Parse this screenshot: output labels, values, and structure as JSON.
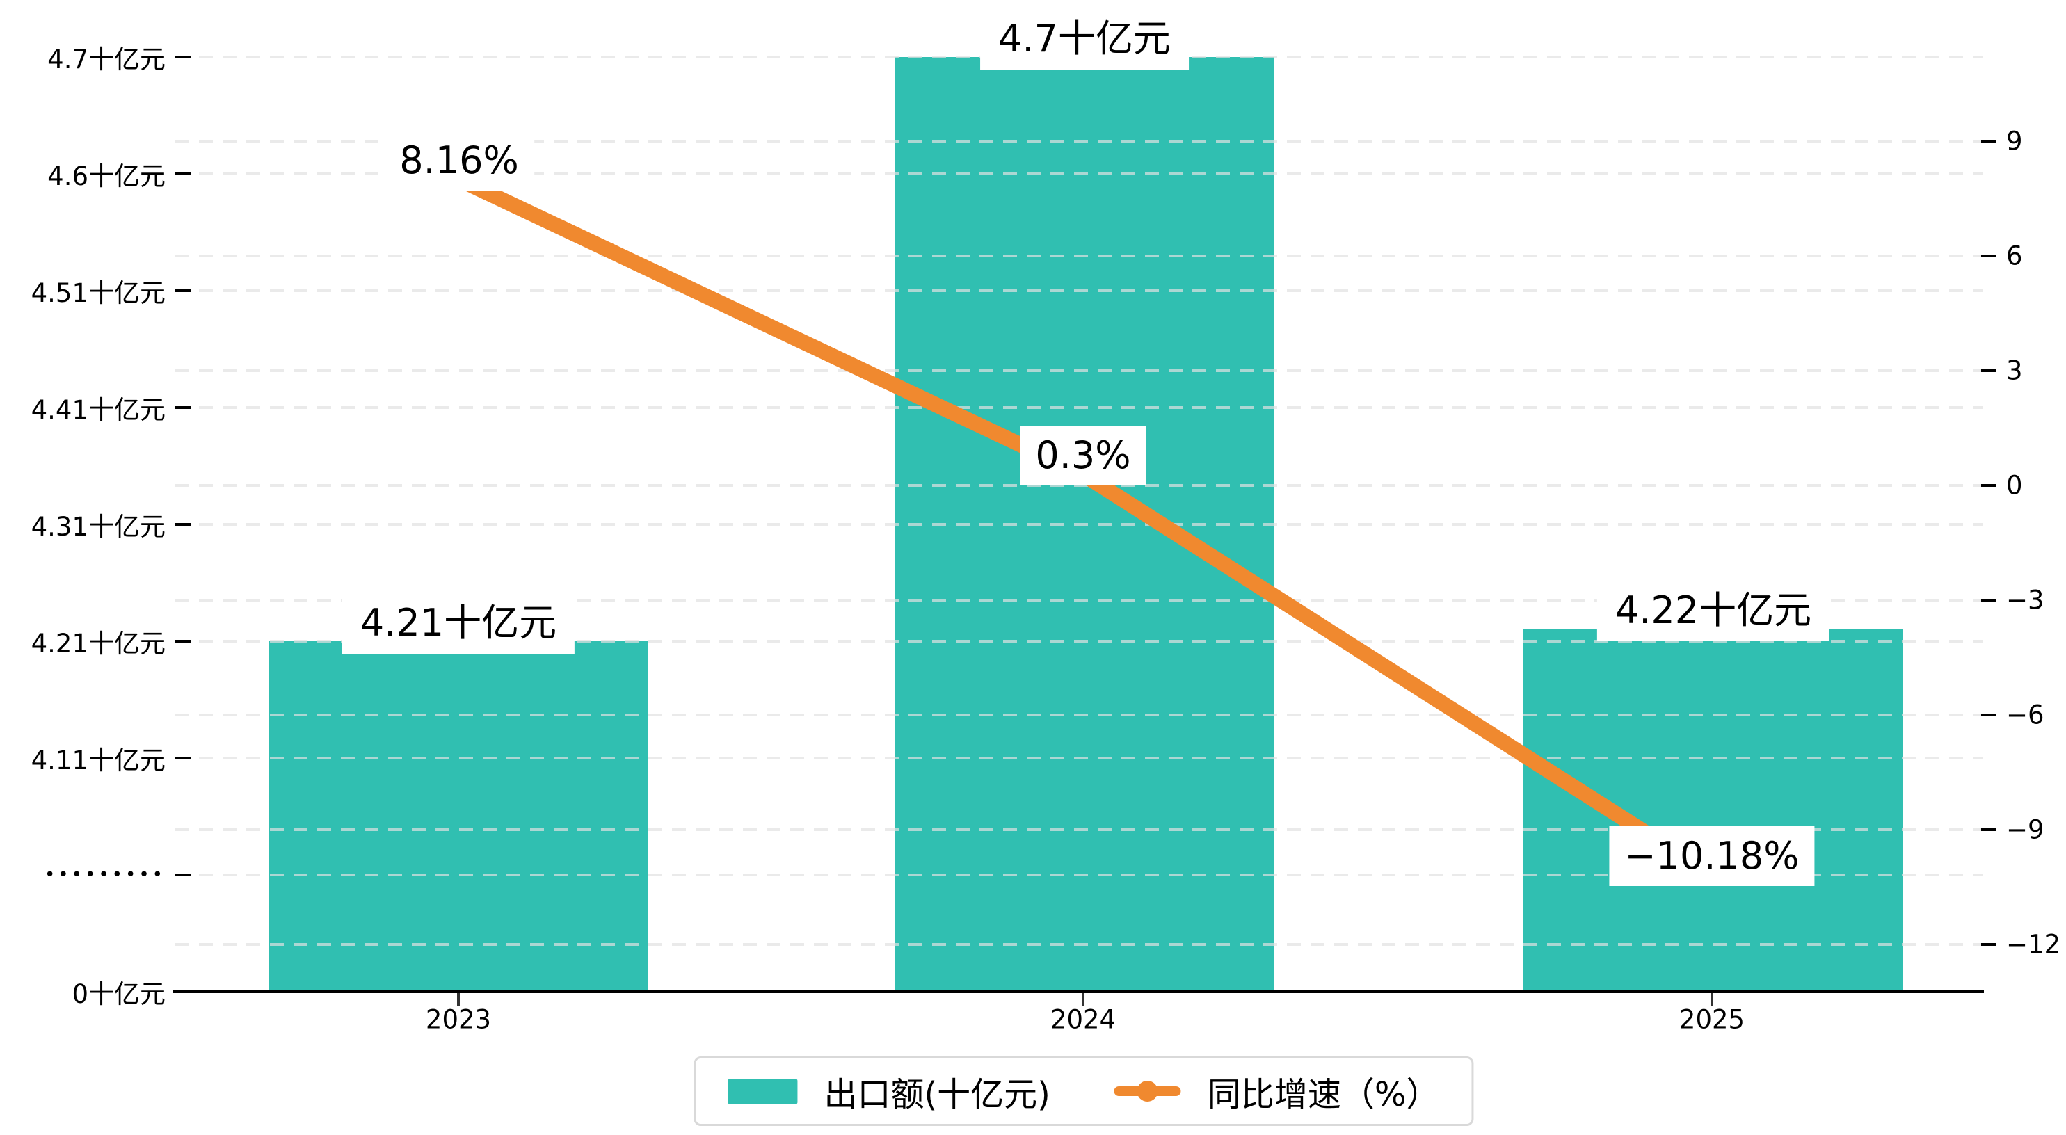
{
  "chart_data": {
    "type": "combo",
    "categories": [
      "2023",
      "2024",
      "2025"
    ],
    "series": [
      {
        "name": "出口额(十亿元)",
        "type": "bar",
        "axis": "left",
        "color": "#30BFB1",
        "values": [
          4.21,
          4.7,
          4.22
        ],
        "value_labels": [
          "4.21十亿元",
          "4.7十亿元",
          "4.22十亿元"
        ]
      },
      {
        "name": "同比增速（%）",
        "type": "line",
        "axis": "right",
        "color": "#F0892F",
        "values": [
          8.16,
          0.3,
          -10.18
        ],
        "value_labels": [
          "8.16%",
          "0.3%",
          "−10.18%"
        ]
      }
    ],
    "left_axis": {
      "unit": "十亿元",
      "has_break": true,
      "tick_labels_top_to_bottom": [
        "4.7十亿元",
        "4.6十亿元",
        "4.51十亿元",
        "4.41十亿元",
        "4.31十亿元",
        "4.21十亿元",
        "4.11十亿元",
        "•••••••••",
        "0十亿元"
      ]
    },
    "right_axis": {
      "min": -12,
      "max": 9,
      "step": 3,
      "tick_labels_top_to_bottom": [
        "9",
        "6",
        "3",
        "0",
        "−3",
        "−6",
        "−9",
        "−12"
      ]
    },
    "legend": {
      "position": "bottom",
      "items": [
        "出口额(十亿元)",
        "同比增速（%）"
      ]
    },
    "grid": {
      "horizontal_dashed": true
    }
  }
}
